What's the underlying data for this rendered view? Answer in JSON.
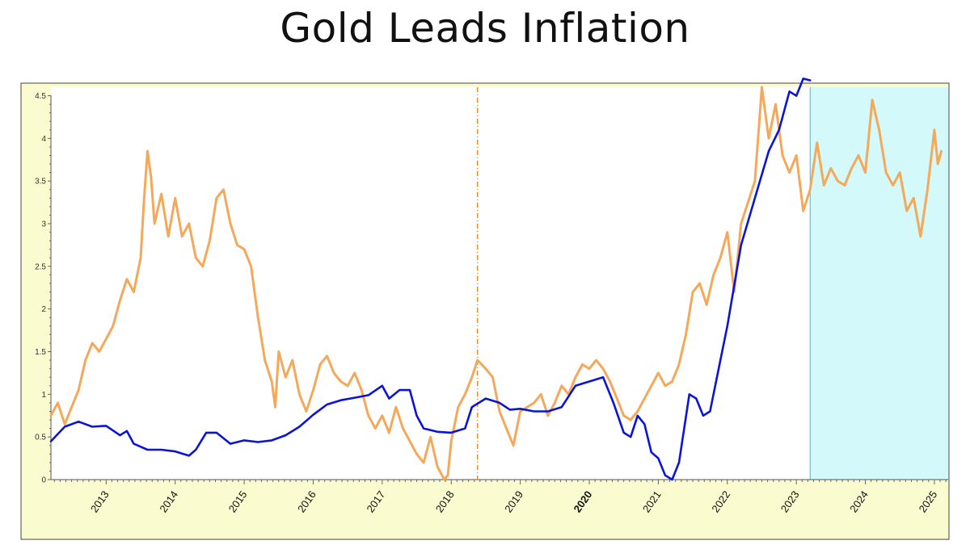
{
  "title": "Gold Leads Inflation",
  "colors": {
    "frame_bg": "#fbfbd0",
    "plot_bg": "#ffffff",
    "shade": "#d4f9fb",
    "gold_series": "#f5a85a",
    "blue_series": "#0a14d8",
    "marker_line": "#f08a2a",
    "highlight_year": "#a00000"
  },
  "chart_data": {
    "type": "line",
    "title": "Gold Leads Inflation",
    "xlabel": "",
    "ylabel": "",
    "xlim": [
      2012.2,
      2025.2
    ],
    "ylim": [
      0,
      4.6
    ],
    "y_ticks": [
      "0",
      "0.5",
      "1",
      "1.5",
      "2",
      "2.5",
      "3",
      "3.5",
      "4",
      "4.5"
    ],
    "x_ticks": [
      "2013",
      "2014",
      "2015",
      "2016",
      "2017",
      "2018",
      "2019",
      "2020",
      "2021",
      "2022",
      "2023",
      "2024",
      "2025"
    ],
    "highlighted_tick": "2020",
    "vertical_marker_x": 2018.38,
    "shaded_region": [
      2023.2,
      2025.2
    ],
    "series": [
      {
        "color": "#f5a85a",
        "points": [
          [
            2012.2,
            0.75
          ],
          [
            2012.3,
            0.9
          ],
          [
            2012.4,
            0.65
          ],
          [
            2012.5,
            0.85
          ],
          [
            2012.6,
            1.05
          ],
          [
            2012.7,
            1.4
          ],
          [
            2012.8,
            1.6
          ],
          [
            2012.9,
            1.5
          ],
          [
            2013.0,
            1.65
          ],
          [
            2013.1,
            1.8
          ],
          [
            2013.2,
            2.1
          ],
          [
            2013.3,
            2.35
          ],
          [
            2013.4,
            2.2
          ],
          [
            2013.5,
            2.6
          ],
          [
            2013.55,
            3.3
          ],
          [
            2013.6,
            3.85
          ],
          [
            2013.65,
            3.55
          ],
          [
            2013.7,
            3.0
          ],
          [
            2013.8,
            3.35
          ],
          [
            2013.9,
            2.85
          ],
          [
            2014.0,
            3.3
          ],
          [
            2014.1,
            2.85
          ],
          [
            2014.2,
            3.0
          ],
          [
            2014.3,
            2.6
          ],
          [
            2014.4,
            2.5
          ],
          [
            2014.5,
            2.8
          ],
          [
            2014.6,
            3.3
          ],
          [
            2014.7,
            3.4
          ],
          [
            2014.8,
            3.0
          ],
          [
            2014.9,
            2.75
          ],
          [
            2015.0,
            2.7
          ],
          [
            2015.1,
            2.5
          ],
          [
            2015.2,
            1.9
          ],
          [
            2015.3,
            1.4
          ],
          [
            2015.4,
            1.15
          ],
          [
            2015.45,
            0.85
          ],
          [
            2015.5,
            1.5
          ],
          [
            2015.6,
            1.2
          ],
          [
            2015.7,
            1.4
          ],
          [
            2015.8,
            1.0
          ],
          [
            2015.9,
            0.8
          ],
          [
            2016.0,
            1.05
          ],
          [
            2016.1,
            1.35
          ],
          [
            2016.2,
            1.45
          ],
          [
            2016.3,
            1.25
          ],
          [
            2016.4,
            1.15
          ],
          [
            2016.5,
            1.1
          ],
          [
            2016.6,
            1.25
          ],
          [
            2016.7,
            1.05
          ],
          [
            2016.8,
            0.75
          ],
          [
            2016.9,
            0.6
          ],
          [
            2017.0,
            0.75
          ],
          [
            2017.1,
            0.55
          ],
          [
            2017.2,
            0.85
          ],
          [
            2017.3,
            0.6
          ],
          [
            2017.4,
            0.45
          ],
          [
            2017.5,
            0.3
          ],
          [
            2017.6,
            0.2
          ],
          [
            2017.7,
            0.5
          ],
          [
            2017.8,
            0.15
          ],
          [
            2017.9,
            0.0
          ],
          [
            2017.95,
            0.05
          ],
          [
            2018.0,
            0.45
          ],
          [
            2018.1,
            0.85
          ],
          [
            2018.2,
            1.0
          ],
          [
            2018.3,
            1.2
          ],
          [
            2018.38,
            1.4
          ],
          [
            2018.5,
            1.3
          ],
          [
            2018.6,
            1.2
          ],
          [
            2018.7,
            0.8
          ],
          [
            2018.8,
            0.6
          ],
          [
            2018.9,
            0.4
          ],
          [
            2019.0,
            0.8
          ],
          [
            2019.1,
            0.85
          ],
          [
            2019.2,
            0.9
          ],
          [
            2019.3,
            1.0
          ],
          [
            2019.4,
            0.75
          ],
          [
            2019.5,
            0.9
          ],
          [
            2019.6,
            1.1
          ],
          [
            2019.7,
            1.0
          ],
          [
            2019.8,
            1.2
          ],
          [
            2019.9,
            1.35
          ],
          [
            2020.0,
            1.3
          ],
          [
            2020.1,
            1.4
          ],
          [
            2020.2,
            1.3
          ],
          [
            2020.3,
            1.15
          ],
          [
            2020.4,
            0.95
          ],
          [
            2020.5,
            0.75
          ],
          [
            2020.6,
            0.7
          ],
          [
            2020.7,
            0.8
          ],
          [
            2020.8,
            0.95
          ],
          [
            2020.9,
            1.1
          ],
          [
            2021.0,
            1.25
          ],
          [
            2021.1,
            1.1
          ],
          [
            2021.2,
            1.15
          ],
          [
            2021.3,
            1.35
          ],
          [
            2021.4,
            1.7
          ],
          [
            2021.5,
            2.2
          ],
          [
            2021.6,
            2.3
          ],
          [
            2021.7,
            2.05
          ],
          [
            2021.8,
            2.4
          ],
          [
            2021.9,
            2.6
          ],
          [
            2022.0,
            2.9
          ],
          [
            2022.1,
            2.2
          ],
          [
            2022.2,
            3.0
          ],
          [
            2022.3,
            3.25
          ],
          [
            2022.4,
            3.5
          ],
          [
            2022.5,
            4.6
          ],
          [
            2022.55,
            4.3
          ],
          [
            2022.6,
            4.0
          ],
          [
            2022.7,
            4.4
          ],
          [
            2022.8,
            3.8
          ],
          [
            2022.9,
            3.6
          ],
          [
            2023.0,
            3.8
          ],
          [
            2023.1,
            3.15
          ],
          [
            2023.2,
            3.4
          ],
          [
            2023.3,
            3.95
          ],
          [
            2023.4,
            3.45
          ],
          [
            2023.5,
            3.65
          ],
          [
            2023.6,
            3.5
          ],
          [
            2023.7,
            3.45
          ],
          [
            2023.8,
            3.65
          ],
          [
            2023.9,
            3.8
          ],
          [
            2024.0,
            3.6
          ],
          [
            2024.1,
            4.45
          ],
          [
            2024.2,
            4.1
          ],
          [
            2024.3,
            3.6
          ],
          [
            2024.4,
            3.45
          ],
          [
            2024.5,
            3.6
          ],
          [
            2024.6,
            3.15
          ],
          [
            2024.7,
            3.3
          ],
          [
            2024.8,
            2.85
          ],
          [
            2024.9,
            3.4
          ],
          [
            2025.0,
            4.1
          ],
          [
            2025.05,
            3.7
          ],
          [
            2025.1,
            3.85
          ]
        ]
      },
      {
        "color": "#0a14d8",
        "points": [
          [
            2012.2,
            0.45
          ],
          [
            2012.4,
            0.62
          ],
          [
            2012.6,
            0.68
          ],
          [
            2012.8,
            0.62
          ],
          [
            2013.0,
            0.63
          ],
          [
            2013.2,
            0.52
          ],
          [
            2013.3,
            0.57
          ],
          [
            2013.4,
            0.42
          ],
          [
            2013.6,
            0.35
          ],
          [
            2013.8,
            0.35
          ],
          [
            2014.0,
            0.33
          ],
          [
            2014.2,
            0.28
          ],
          [
            2014.3,
            0.35
          ],
          [
            2014.45,
            0.55
          ],
          [
            2014.6,
            0.55
          ],
          [
            2014.8,
            0.42
          ],
          [
            2015.0,
            0.46
          ],
          [
            2015.2,
            0.44
          ],
          [
            2015.4,
            0.46
          ],
          [
            2015.6,
            0.52
          ],
          [
            2015.8,
            0.62
          ],
          [
            2016.0,
            0.76
          ],
          [
            2016.2,
            0.88
          ],
          [
            2016.4,
            0.93
          ],
          [
            2016.6,
            0.96
          ],
          [
            2016.8,
            0.99
          ],
          [
            2017.0,
            1.1
          ],
          [
            2017.1,
            0.95
          ],
          [
            2017.25,
            1.05
          ],
          [
            2017.4,
            1.05
          ],
          [
            2017.5,
            0.75
          ],
          [
            2017.6,
            0.6
          ],
          [
            2017.8,
            0.56
          ],
          [
            2018.0,
            0.55
          ],
          [
            2018.2,
            0.6
          ],
          [
            2018.3,
            0.85
          ],
          [
            2018.5,
            0.95
          ],
          [
            2018.7,
            0.9
          ],
          [
            2018.85,
            0.82
          ],
          [
            2019.0,
            0.83
          ],
          [
            2019.2,
            0.8
          ],
          [
            2019.4,
            0.8
          ],
          [
            2019.6,
            0.85
          ],
          [
            2019.8,
            1.1
          ],
          [
            2020.0,
            1.15
          ],
          [
            2020.2,
            1.2
          ],
          [
            2020.35,
            0.9
          ],
          [
            2020.5,
            0.55
          ],
          [
            2020.6,
            0.5
          ],
          [
            2020.7,
            0.75
          ],
          [
            2020.8,
            0.65
          ],
          [
            2020.9,
            0.32
          ],
          [
            2021.0,
            0.25
          ],
          [
            2021.1,
            0.05
          ],
          [
            2021.2,
            0.0
          ],
          [
            2021.3,
            0.2
          ],
          [
            2021.45,
            1.0
          ],
          [
            2021.55,
            0.95
          ],
          [
            2021.65,
            0.75
          ],
          [
            2021.75,
            0.8
          ],
          [
            2021.9,
            1.4
          ],
          [
            2022.0,
            1.8
          ],
          [
            2022.2,
            2.75
          ],
          [
            2022.4,
            3.3
          ],
          [
            2022.6,
            3.85
          ],
          [
            2022.75,
            4.1
          ],
          [
            2022.9,
            4.55
          ],
          [
            2023.0,
            4.5
          ],
          [
            2023.1,
            4.7
          ],
          [
            2023.2,
            4.68
          ]
        ]
      }
    ]
  }
}
